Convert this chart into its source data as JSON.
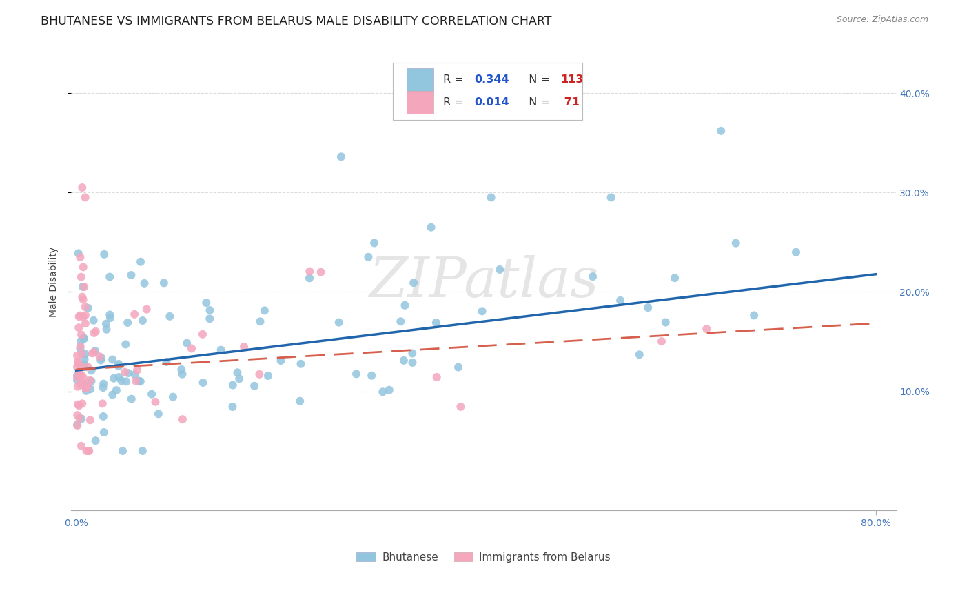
{
  "title": "BHUTANESE VS IMMIGRANTS FROM BELARUS MALE DISABILITY CORRELATION CHART",
  "source": "Source: ZipAtlas.com",
  "ylabel": "Male Disability",
  "xlim": [
    -0.005,
    0.82
  ],
  "ylim": [
    -0.02,
    0.44
  ],
  "yticks": [
    0.1,
    0.2,
    0.3,
    0.4
  ],
  "ytick_labels": [
    "10.0%",
    "20.0%",
    "30.0%",
    "40.0%"
  ],
  "xtick_left": "0.0%",
  "xtick_right": "80.0%",
  "watermark": "ZIPatlas",
  "color_bhutanese": "#92C5DE",
  "color_belarus": "#F4A6BD",
  "color_line_bhutanese": "#2166AC",
  "color_line_belarus": "#D6604D",
  "grid_color": "#DDDDDD",
  "title_color": "#222222",
  "tick_color": "#4477BB",
  "ylabel_color": "#444444",
  "title_fontsize": 12.5,
  "tick_fontsize": 10,
  "legend_blue_color": "#2255CC",
  "legend_red_color": "#CC2222",
  "note_seed": 12345,
  "bhutanese_intercept": 0.121,
  "bhutanese_slope": 0.121,
  "belarus_intercept": 0.122,
  "belarus_slope": 0.058
}
